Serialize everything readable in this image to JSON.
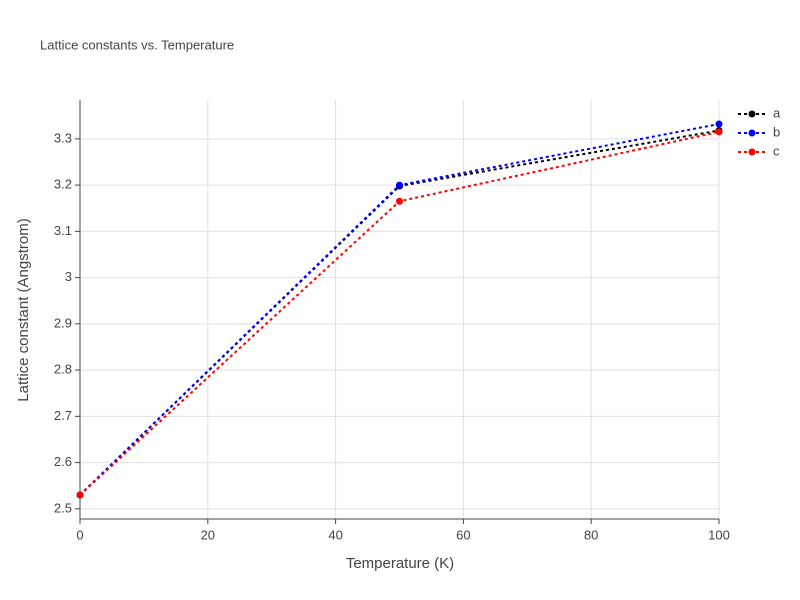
{
  "chart_data": {
    "type": "line",
    "title": "Lattice constants vs. Temperature",
    "x_label": "Temperature (K)",
    "y_label": "Lattice constant (Angstrom)",
    "x": [
      0,
      50,
      100
    ],
    "series": [
      {
        "name": "a",
        "color": "#000000",
        "values": [
          2.53,
          3.198,
          3.318
        ]
      },
      {
        "name": "b",
        "color": "#0000ff",
        "values": [
          2.53,
          3.2,
          3.332
        ]
      },
      {
        "name": "c",
        "color": "#ff0000",
        "values": [
          2.53,
          3.165,
          3.315
        ]
      }
    ],
    "xlim": [
      0,
      100
    ],
    "xticks": [
      0,
      20,
      40,
      60,
      80,
      100
    ],
    "ylim": [
      2.478,
      3.384
    ],
    "yticks": [
      2.5,
      2.6,
      2.7,
      2.8,
      2.9,
      3,
      3.1,
      3.2,
      3.3
    ],
    "grid": true
  }
}
